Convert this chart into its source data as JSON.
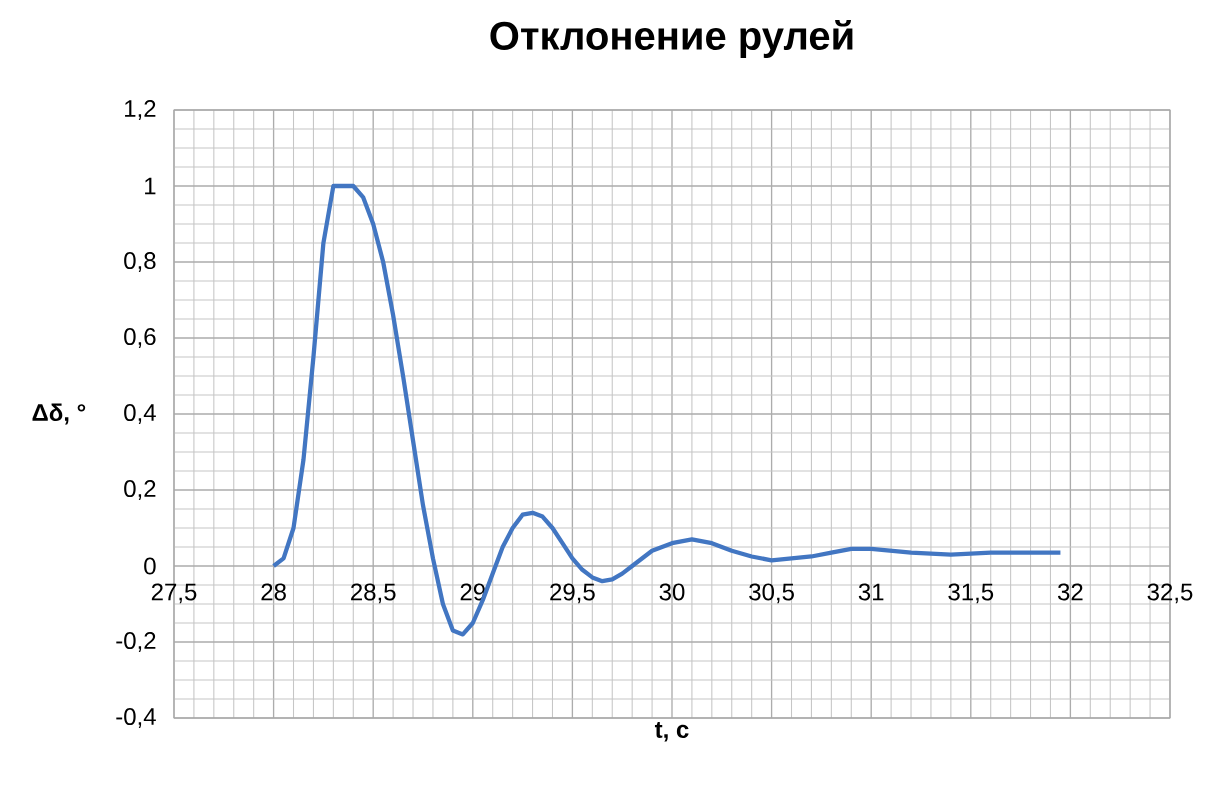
{
  "chart_data": {
    "type": "line",
    "title": "Отклонение рулей",
    "xlabel": "t, c",
    "ylabel": "Δδ, °",
    "xlim": [
      27.5,
      32.5
    ],
    "ylim": [
      -0.4,
      1.2
    ],
    "xticks": [
      {
        "value": 27.5,
        "label": "27,5"
      },
      28,
      {
        "value": 28.5,
        "label": "28,5"
      },
      29,
      {
        "value": 29.5,
        "label": "29,5"
      },
      30,
      {
        "value": 30.5,
        "label": "30,5"
      },
      31,
      {
        "value": 31.5,
        "label": "31,5"
      },
      32,
      {
        "value": 32.5,
        "label": "32,5"
      }
    ],
    "yticks": [
      {
        "value": -0.4,
        "label": "-0,4"
      },
      {
        "value": -0.2,
        "label": "-0,2"
      },
      0,
      {
        "value": 0.2,
        "label": "0,2"
      },
      {
        "value": 0.4,
        "label": "0,4"
      },
      {
        "value": 0.6,
        "label": "0,6"
      },
      {
        "value": 0.8,
        "label": "0,8"
      },
      1,
      {
        "value": 1.2,
        "label": "1,2"
      }
    ],
    "grid": true,
    "marker": "none",
    "line_style": "solid",
    "series": [
      {
        "color": "#4276c2",
        "x": [
          28.0,
          28.05,
          28.1,
          28.15,
          28.2,
          28.25,
          28.3,
          28.35,
          28.4,
          28.45,
          28.5,
          28.55,
          28.6,
          28.65,
          28.7,
          28.75,
          28.8,
          28.85,
          28.9,
          28.95,
          29.0,
          29.05,
          29.1,
          29.15,
          29.2,
          29.25,
          29.3,
          29.35,
          29.4,
          29.45,
          29.5,
          29.55,
          29.6,
          29.65,
          29.7,
          29.75,
          29.8,
          29.9,
          30.0,
          30.1,
          30.2,
          30.3,
          30.4,
          30.5,
          30.6,
          30.7,
          30.8,
          30.9,
          31.0,
          31.1,
          31.2,
          31.4,
          31.6,
          31.8,
          31.95
        ],
        "values": [
          0.0,
          0.02,
          0.1,
          0.28,
          0.55,
          0.85,
          1.0,
          1.0,
          1.0,
          0.97,
          0.9,
          0.8,
          0.66,
          0.5,
          0.33,
          0.16,
          0.02,
          -0.1,
          -0.17,
          -0.18,
          -0.15,
          -0.09,
          -0.02,
          0.05,
          0.1,
          0.135,
          0.14,
          0.13,
          0.1,
          0.06,
          0.02,
          -0.01,
          -0.03,
          -0.04,
          -0.035,
          -0.02,
          0.0,
          0.04,
          0.06,
          0.07,
          0.06,
          0.04,
          0.025,
          0.015,
          0.02,
          0.025,
          0.035,
          0.045,
          0.045,
          0.04,
          0.035,
          0.03,
          0.035,
          0.035,
          0.035
        ]
      }
    ]
  }
}
